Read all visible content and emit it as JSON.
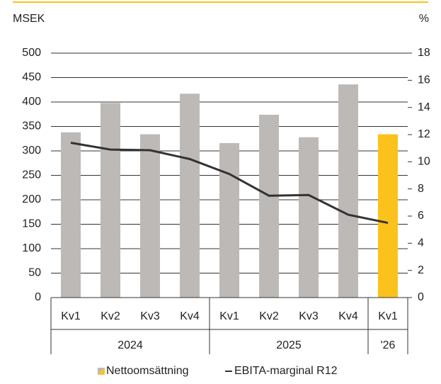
{
  "chart_data": {
    "type": "bar-line",
    "ylabel": "MSEK",
    "y2label": "%",
    "categories": [
      "Kv1",
      "Kv2",
      "Kv3",
      "Kv4",
      "Kv1",
      "Kv2",
      "Kv3",
      "Kv4",
      "Kv1"
    ],
    "category_groups": [
      {
        "label": "2024",
        "count": 4
      },
      {
        "label": "2025",
        "count": 4
      },
      {
        "label": "'26",
        "count": 1
      }
    ],
    "series": [
      {
        "name": "Nettoomsättning",
        "type": "bar",
        "color": "#bdb9b6",
        "highlight_color": "#fbc21c",
        "highlight_index": 8,
        "values": [
          338,
          398,
          334,
          417,
          316,
          374,
          328,
          436,
          334
        ]
      },
      {
        "name": "EBITA-marginal R12",
        "type": "line",
        "axis": "y2",
        "color": "#333333",
        "values": [
          11.4,
          10.9,
          10.85,
          10.2,
          9.1,
          7.5,
          7.55,
          6.1,
          5.5
        ]
      }
    ],
    "ylim": [
      0,
      500
    ],
    "yticks": [
      0,
      50,
      100,
      150,
      200,
      250,
      300,
      350,
      400,
      450,
      500
    ],
    "y2lim": [
      0,
      18
    ],
    "y2ticks": [
      0,
      2,
      4,
      6,
      8,
      10,
      12,
      14,
      16,
      18
    ],
    "grid": true,
    "legend": "bottom"
  }
}
